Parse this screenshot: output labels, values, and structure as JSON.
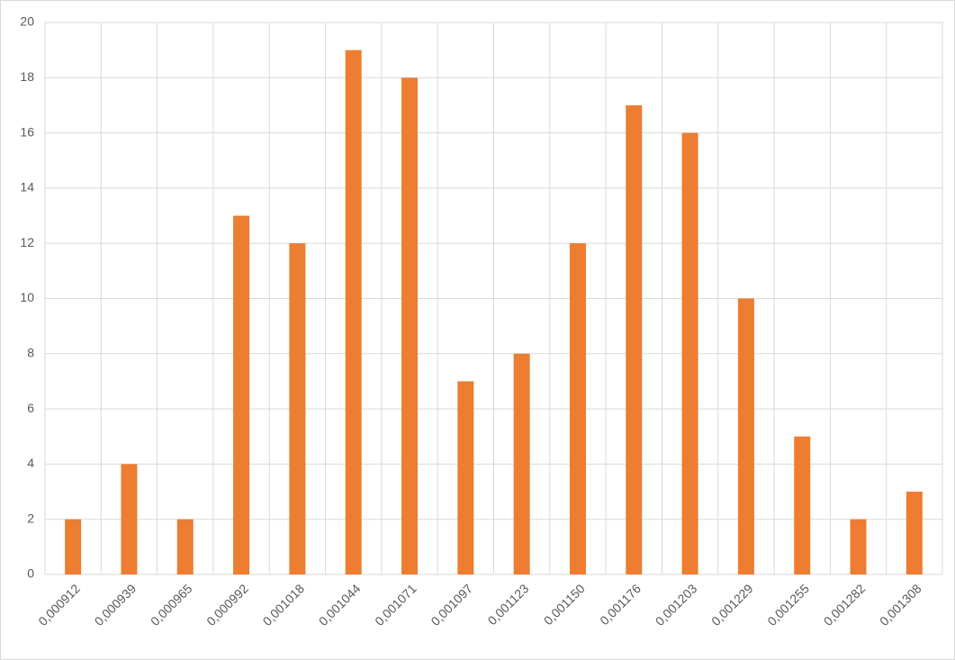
{
  "chart_data": {
    "type": "bar",
    "categories": [
      "0,000912",
      "0,000939",
      "0,000965",
      "0,000992",
      "0,001018",
      "0,001044",
      "0,001071",
      "0,001097",
      "0,001123",
      "0,001150",
      "0,001176",
      "0,001203",
      "0,001229",
      "0,001255",
      "0,001282",
      "0,001308"
    ],
    "values": [
      2,
      4,
      2,
      13,
      12,
      19,
      18,
      7,
      8,
      12,
      17,
      16,
      10,
      5,
      2,
      3
    ],
    "color": "#ed7d31",
    "ylim": [
      0,
      20
    ],
    "yticks": [
      0,
      2,
      4,
      6,
      8,
      10,
      12,
      14,
      16,
      18,
      20
    ],
    "grid": true,
    "category_grid": true
  }
}
